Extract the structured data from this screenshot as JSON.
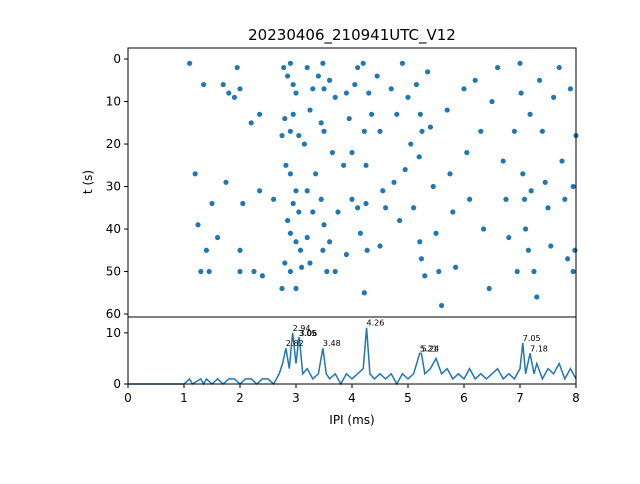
{
  "chart_data": [
    {
      "type": "scatter",
      "title": "20230406_210941UTC_V12",
      "y_label": "t (s)",
      "color": "#1f77b4",
      "xlim": [
        0,
        8
      ],
      "ylim": [
        60.7,
        -2.6
      ],
      "yticks": [
        0,
        10,
        20,
        30,
        40,
        50,
        60
      ],
      "x": [
        1.1,
        1.35,
        1.7,
        1.8,
        1.9,
        1.95,
        2.0,
        1.2,
        1.5,
        1.75,
        2.05,
        2.35,
        2.6,
        1.25,
        1.4,
        1.6,
        2.0,
        1.3,
        1.45,
        2.0,
        2.25,
        2.4,
        2.2,
        2.35,
        2.75,
        2.78,
        2.85,
        2.9,
        2.95,
        3.0,
        2.8,
        2.9,
        2.95,
        3.05,
        2.82,
        2.9,
        3.0,
        2.95,
        3.05,
        2.85,
        2.9,
        3.0,
        3.08,
        2.8,
        2.9,
        3.0,
        3.1,
        2.75,
        3.2,
        3.3,
        3.25,
        3.15,
        3.35,
        3.2,
        3.3,
        3.2,
        3.25,
        3.4,
        3.48,
        3.5,
        3.45,
        3.5,
        3.45,
        3.5,
        3.48,
        3.55,
        3.6,
        3.7,
        3.65,
        3.75,
        3.6,
        3.7,
        3.9,
        3.95,
        3.85,
        4.0,
        3.9,
        4.05,
        4.1,
        4.0,
        4.1,
        4.15,
        4.2,
        4.22,
        4.25,
        4.25,
        4.27,
        4.3,
        4.22,
        4.35,
        4.45,
        4.5,
        4.55,
        4.6,
        4.5,
        4.7,
        4.8,
        4.75,
        4.85,
        4.9,
        5.0,
        5.05,
        4.95,
        5.1,
        5.15,
        5.22,
        5.25,
        5.2,
        5.21,
        5.24,
        5.3,
        5.35,
        5.4,
        5.45,
        5.5,
        5.55,
        5.6,
        5.7,
        5.75,
        5.8,
        5.85,
        6.0,
        6.05,
        6.1,
        6.2,
        6.3,
        6.35,
        6.5,
        6.45,
        6.6,
        6.7,
        6.75,
        6.8,
        6.9,
        6.95,
        7.0,
        7.02,
        7.05,
        7.08,
        7.1,
        7.15,
        7.18,
        7.2,
        7.25,
        7.3,
        7.35,
        7.4,
        7.45,
        7.5,
        7.55,
        7.6,
        7.7,
        7.75,
        7.8,
        7.85,
        7.9,
        7.95,
        8.0,
        7.95,
        7.98
      ],
      "values": [
        1,
        6,
        6,
        8,
        9,
        2,
        7,
        27,
        34,
        29,
        34,
        31,
        33,
        39,
        45,
        42,
        45,
        50,
        50,
        50,
        50,
        51,
        15,
        13,
        18,
        2,
        4,
        1,
        6,
        8,
        14,
        17,
        13,
        18,
        25,
        27,
        31,
        34,
        36,
        38,
        41,
        43,
        45,
        48,
        50,
        54,
        49,
        54,
        2,
        7,
        12,
        20,
        27,
        31,
        36,
        42,
        48,
        4,
        1,
        7,
        15,
        17,
        33,
        39,
        45,
        50,
        5,
        9,
        22,
        36,
        43,
        50,
        8,
        14,
        25,
        33,
        46,
        6,
        2,
        22,
        35,
        41,
        1,
        17,
        25,
        34,
        45,
        8,
        55,
        13,
        4,
        17,
        31,
        35,
        44,
        7,
        13,
        29,
        38,
        1,
        9,
        20,
        26,
        35,
        6,
        13,
        17,
        23,
        43,
        47,
        51,
        3,
        16,
        30,
        41,
        50,
        58,
        12,
        27,
        36,
        49,
        7,
        22,
        33,
        5,
        17,
        40,
        10,
        54,
        2,
        24,
        33,
        42,
        17,
        50,
        1,
        8,
        27,
        33,
        40,
        45,
        13,
        31,
        50,
        56,
        5,
        17,
        29,
        35,
        44,
        9,
        2,
        24,
        33,
        47,
        7,
        30,
        18,
        50,
        45
      ]
    },
    {
      "type": "line",
      "x_label": "IPI (ms)",
      "color": "#1f77b4",
      "xlim": [
        0,
        8
      ],
      "xticks": [
        0,
        1,
        2,
        3,
        4,
        5,
        6,
        7,
        8
      ],
      "ylim": [
        0,
        13.1
      ],
      "yticks": [
        0,
        10
      ],
      "x": [
        0,
        1.0,
        1.1,
        1.15,
        1.3,
        1.35,
        1.4,
        1.5,
        1.6,
        1.7,
        1.8,
        1.9,
        2.0,
        2.1,
        2.2,
        2.3,
        2.4,
        2.5,
        2.6,
        2.7,
        2.76,
        2.82,
        2.88,
        2.94,
        3.0,
        3.05,
        3.06,
        3.12,
        3.2,
        3.3,
        3.4,
        3.48,
        3.54,
        3.6,
        3.7,
        3.8,
        3.9,
        4.0,
        4.1,
        4.2,
        4.26,
        4.32,
        4.4,
        4.5,
        4.6,
        4.7,
        4.8,
        4.9,
        5.0,
        5.1,
        5.21,
        5.24,
        5.3,
        5.4,
        5.5,
        5.6,
        5.7,
        5.8,
        5.9,
        6.0,
        6.1,
        6.2,
        6.3,
        6.4,
        6.5,
        6.6,
        6.7,
        6.8,
        6.9,
        7.0,
        7.05,
        7.1,
        7.18,
        7.25,
        7.3,
        7.4,
        7.5,
        7.6,
        7.7,
        7.8,
        7.9,
        8.0
      ],
      "values": [
        0,
        0,
        1,
        0,
        1,
        0,
        1,
        0,
        1,
        0,
        1,
        1,
        0,
        1,
        1,
        0,
        1,
        1,
        0,
        2,
        4,
        7,
        3,
        10,
        4,
        9,
        9,
        2,
        3,
        1,
        2,
        7,
        2,
        1,
        2,
        0,
        2,
        1,
        2,
        3,
        11,
        2,
        1,
        2,
        1,
        2,
        0,
        2,
        1,
        2,
        6,
        6,
        2,
        3,
        5,
        2,
        3,
        1,
        2,
        1,
        3,
        1,
        2,
        1,
        2,
        3,
        1,
        2,
        1,
        3,
        8,
        2,
        6,
        2,
        4,
        1,
        3,
        2,
        4,
        1,
        3,
        1
      ],
      "peaks": [
        {
          "x": 2.82,
          "y": 7
        },
        {
          "x": 2.94,
          "y": 10
        },
        {
          "x": 3.05,
          "y": 9
        },
        {
          "x": 3.06,
          "y": 9
        },
        {
          "x": 3.48,
          "y": 7
        },
        {
          "x": 4.26,
          "y": 11
        },
        {
          "x": 5.21,
          "y": 6
        },
        {
          "x": 5.24,
          "y": 6
        },
        {
          "x": 7.05,
          "y": 8
        },
        {
          "x": 7.18,
          "y": 6
        }
      ]
    }
  ]
}
